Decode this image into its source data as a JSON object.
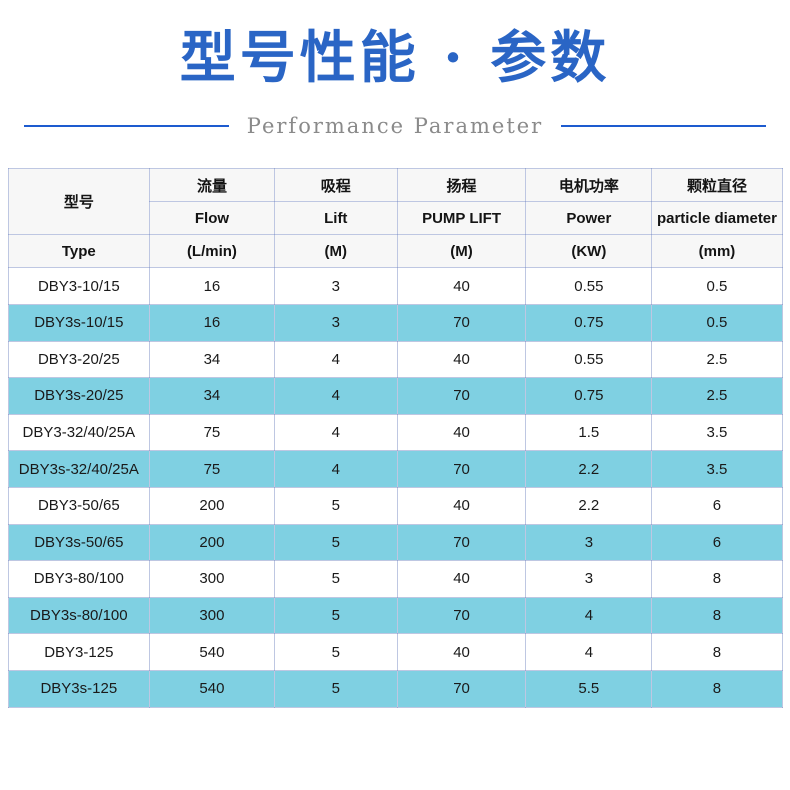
{
  "header": {
    "title": "型号性能 · 参数",
    "subtitle": "Performance Parameter",
    "title_color": "#2a65c5",
    "line_color": "#1d5bcf"
  },
  "table": {
    "columns": [
      {
        "cn": "型号",
        "en": "",
        "unit": "Type"
      },
      {
        "cn": "流量",
        "en": "Flow",
        "unit": "(L/min)"
      },
      {
        "cn": "吸程",
        "en": "Lift",
        "unit": "(M)"
      },
      {
        "cn": "扬程",
        "en": "PUMP LIFT",
        "unit": "(M)"
      },
      {
        "cn": "电机功率",
        "en": "Power",
        "unit": "(KW)"
      },
      {
        "cn": "颗粒直径",
        "en": "particle diameter",
        "unit": "(mm)"
      }
    ],
    "rows": [
      [
        "DBY3-10/15",
        "16",
        "3",
        "40",
        "0.55",
        "0.5"
      ],
      [
        "DBY3s-10/15",
        "16",
        "3",
        "70",
        "0.75",
        "0.5"
      ],
      [
        "DBY3-20/25",
        "34",
        "4",
        "40",
        "0.55",
        "2.5"
      ],
      [
        "DBY3s-20/25",
        "34",
        "4",
        "70",
        "0.75",
        "2.5"
      ],
      [
        "DBY3-32/40/25A",
        "75",
        "4",
        "40",
        "1.5",
        "3.5"
      ],
      [
        "DBY3s-32/40/25A",
        "75",
        "4",
        "70",
        "2.2",
        "3.5"
      ],
      [
        "DBY3-50/65",
        "200",
        "5",
        "40",
        "2.2",
        "6"
      ],
      [
        "DBY3s-50/65",
        "200",
        "5",
        "70",
        "3",
        "6"
      ],
      [
        "DBY3-80/100",
        "300",
        "5",
        "40",
        "3",
        "8"
      ],
      [
        "DBY3s-80/100",
        "300",
        "5",
        "70",
        "4",
        "8"
      ],
      [
        "DBY3-125",
        "540",
        "5",
        "40",
        "4",
        "8"
      ],
      [
        "DBY3s-125",
        "540",
        "5",
        "70",
        "5.5",
        "8"
      ]
    ],
    "zebra_color": "#7fd0e2",
    "header_bg": "#f7f7f7",
    "column_widths_pct": [
      18.3,
      16.1,
      15.9,
      16.6,
      16.3,
      16.8
    ]
  }
}
